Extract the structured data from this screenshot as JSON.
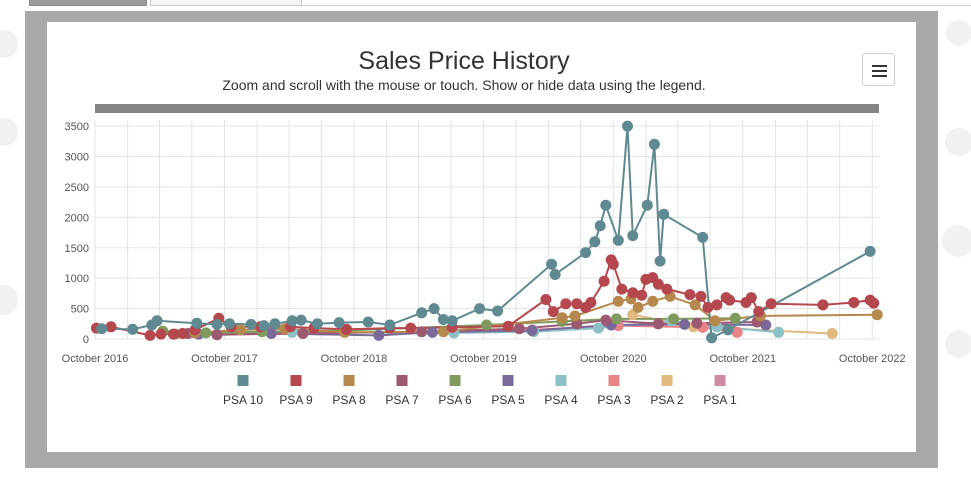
{
  "chart_data": {
    "type": "line",
    "title": "Sales Price History",
    "subtitle": "Zoom and scroll with the mouse or touch. Show or hide data using the legend.",
    "xlabel": "",
    "ylabel": "",
    "x_type": "date",
    "xlim": [
      "2016-10-01",
      "2022-10-20"
    ],
    "ylim": [
      0,
      3600
    ],
    "x_ticks": [
      "October 2016",
      "October 2017",
      "October 2018",
      "October 2019",
      "October 2020",
      "October 2021",
      "October 2022"
    ],
    "y_ticks": [
      "0",
      "500",
      "1000",
      "1500",
      "2000",
      "2500",
      "3000",
      "3500"
    ],
    "grid": true,
    "legend_position": "bottom",
    "series": [
      {
        "name": "PSA 10",
        "color": "#5f8a91",
        "points": [
          [
            "2016-10-20",
            170
          ],
          [
            "2017-01-15",
            160
          ],
          [
            "2017-03-10",
            230
          ],
          [
            "2017-03-25",
            300
          ],
          [
            "2017-07-15",
            260
          ],
          [
            "2017-09-10",
            240
          ],
          [
            "2017-10-15",
            250
          ],
          [
            "2017-12-15",
            240
          ],
          [
            "2018-01-20",
            220
          ],
          [
            "2018-02-20",
            250
          ],
          [
            "2018-04-10",
            300
          ],
          [
            "2018-05-05",
            310
          ],
          [
            "2018-06-20",
            250
          ],
          [
            "2018-08-20",
            270
          ],
          [
            "2018-11-10",
            280
          ],
          [
            "2019-01-10",
            230
          ],
          [
            "2019-04-10",
            430
          ],
          [
            "2019-05-15",
            500
          ],
          [
            "2019-06-10",
            320
          ],
          [
            "2019-07-05",
            300
          ],
          [
            "2019-09-20",
            500
          ],
          [
            "2019-11-10",
            460
          ],
          [
            "2020-04-10",
            1230
          ],
          [
            "2020-04-20",
            1060
          ],
          [
            "2020-07-15",
            1420
          ],
          [
            "2020-08-10",
            1600
          ],
          [
            "2020-08-25",
            1860
          ],
          [
            "2020-09-10",
            2200
          ],
          [
            "2020-10-15",
            1620
          ],
          [
            "2020-11-10",
            3500
          ],
          [
            "2020-11-25",
            1700
          ],
          [
            "2021-01-05",
            2200
          ],
          [
            "2021-01-25",
            3200
          ],
          [
            "2021-02-10",
            1280
          ],
          [
            "2021-02-20",
            2050
          ],
          [
            "2021-06-10",
            1670
          ],
          [
            "2021-07-05",
            20
          ],
          [
            "2021-08-20",
            150
          ],
          [
            "2022-09-25",
            1440
          ]
        ]
      },
      {
        "name": "PSA 9",
        "color": "#b5484e",
        "points": [
          [
            "2016-10-05",
            180
          ],
          [
            "2016-11-15",
            200
          ],
          [
            "2017-03-05",
            60
          ],
          [
            "2017-04-05",
            80
          ],
          [
            "2017-05-10",
            80
          ],
          [
            "2017-06-05",
            90
          ],
          [
            "2017-07-10",
            150
          ],
          [
            "2017-09-15",
            340
          ],
          [
            "2017-10-20",
            200
          ],
          [
            "2018-01-10",
            200
          ],
          [
            "2018-04-05",
            200
          ],
          [
            "2018-06-10",
            180
          ],
          [
            "2018-09-10",
            160
          ],
          [
            "2019-01-10",
            180
          ],
          [
            "2019-03-10",
            180
          ],
          [
            "2019-07-05",
            190
          ],
          [
            "2019-12-10",
            210
          ],
          [
            "2020-03-25",
            650
          ],
          [
            "2020-04-15",
            450
          ],
          [
            "2020-05-20",
            580
          ],
          [
            "2020-06-20",
            580
          ],
          [
            "2020-07-15",
            520
          ],
          [
            "2020-07-30",
            600
          ],
          [
            "2020-09-05",
            950
          ],
          [
            "2020-09-25",
            1300
          ],
          [
            "2020-10-01",
            1230
          ],
          [
            "2020-10-25",
            820
          ],
          [
            "2020-11-25",
            760
          ],
          [
            "2020-12-20",
            720
          ],
          [
            "2021-01-01",
            980
          ],
          [
            "2021-01-20",
            1010
          ],
          [
            "2021-02-05",
            900
          ],
          [
            "2021-03-01",
            820
          ],
          [
            "2021-05-05",
            730
          ],
          [
            "2021-06-05",
            700
          ],
          [
            "2021-06-25",
            520
          ],
          [
            "2021-07-20",
            560
          ],
          [
            "2021-08-15",
            680
          ],
          [
            "2021-08-25",
            640
          ],
          [
            "2021-10-10",
            600
          ],
          [
            "2021-10-25",
            680
          ],
          [
            "2021-11-15",
            450
          ],
          [
            "2021-12-20",
            580
          ],
          [
            "2022-05-15",
            560
          ],
          [
            "2022-08-10",
            600
          ],
          [
            "2022-09-25",
            640
          ],
          [
            "2022-10-05",
            590
          ]
        ]
      },
      {
        "name": "PSA 8",
        "color": "#b5884e",
        "points": [
          [
            "2017-05-15",
            80
          ],
          [
            "2017-07-10",
            100
          ],
          [
            "2017-11-15",
            150
          ],
          [
            "2018-03-20",
            170
          ],
          [
            "2018-09-05",
            110
          ],
          [
            "2019-06-10",
            120
          ],
          [
            "2020-05-10",
            350
          ],
          [
            "2020-06-15",
            380
          ],
          [
            "2020-10-15",
            620
          ],
          [
            "2020-11-20",
            660
          ],
          [
            "2020-12-10",
            520
          ],
          [
            "2021-01-20",
            620
          ],
          [
            "2021-03-10",
            700
          ],
          [
            "2021-05-20",
            560
          ],
          [
            "2021-07-15",
            300
          ],
          [
            "2021-11-20",
            380
          ],
          [
            "2022-10-15",
            400
          ]
        ]
      },
      {
        "name": "PSA 7",
        "color": "#9b5a70",
        "points": [
          [
            "2017-06-20",
            90
          ],
          [
            "2017-09-10",
            70
          ],
          [
            "2018-05-10",
            90
          ],
          [
            "2019-04-10",
            120
          ],
          [
            "2020-01-10",
            170
          ],
          [
            "2020-06-20",
            250
          ],
          [
            "2020-09-10",
            310
          ],
          [
            "2021-02-05",
            250
          ],
          [
            "2021-05-25",
            260
          ],
          [
            "2021-11-10",
            280
          ]
        ]
      },
      {
        "name": "PSA 6",
        "color": "#809a5e",
        "points": [
          [
            "2017-04-10",
            130
          ],
          [
            "2017-08-10",
            100
          ],
          [
            "2018-01-15",
            120
          ],
          [
            "2018-09-10",
            140
          ],
          [
            "2019-10-10",
            230
          ],
          [
            "2020-05-10",
            290
          ],
          [
            "2020-10-10",
            330
          ],
          [
            "2021-03-20",
            330
          ],
          [
            "2021-09-10",
            340
          ]
        ]
      },
      {
        "name": "PSA 5",
        "color": "#7a6a99",
        "points": [
          [
            "2017-07-20",
            80
          ],
          [
            "2018-02-10",
            90
          ],
          [
            "2018-12-10",
            60
          ],
          [
            "2019-05-10",
            110
          ],
          [
            "2020-02-15",
            140
          ],
          [
            "2020-09-25",
            230
          ],
          [
            "2021-04-20",
            240
          ],
          [
            "2021-12-05",
            230
          ]
        ]
      },
      {
        "name": "PSA 4",
        "color": "#8dbfc6",
        "points": [
          [
            "2018-04-10",
            110
          ],
          [
            "2019-07-10",
            100
          ],
          [
            "2020-02-20",
            120
          ],
          [
            "2020-08-20",
            180
          ],
          [
            "2021-03-15",
            300
          ],
          [
            "2021-07-20",
            200
          ],
          [
            "2022-01-10",
            110
          ]
        ]
      },
      {
        "name": "PSA 3",
        "color": "#e78486",
        "points": [
          [
            "2020-02-15",
            150
          ],
          [
            "2020-10-15",
            220
          ],
          [
            "2021-06-10",
            190
          ],
          [
            "2021-09-15",
            110
          ]
        ]
      },
      {
        "name": "PSA 2",
        "color": "#e0b97e",
        "points": [
          [
            "2020-11-25",
            400
          ],
          [
            "2021-05-15",
            200
          ],
          [
            "2022-06-10",
            90
          ]
        ]
      },
      {
        "name": "PSA 1",
        "color": "#cf8ba4",
        "points": []
      }
    ]
  },
  "ui": {
    "menu_icon": "hamburger-menu-icon"
  }
}
